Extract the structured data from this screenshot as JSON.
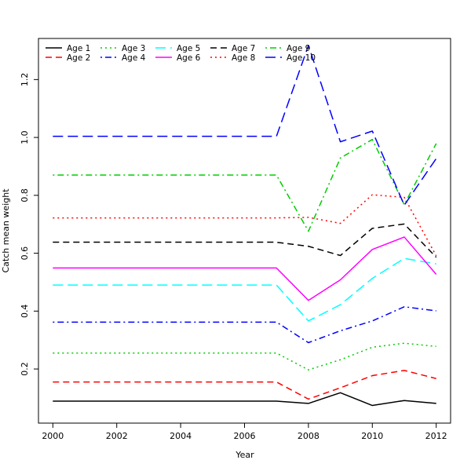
{
  "chart_data": {
    "type": "line",
    "title": "",
    "xlabel": "Year",
    "ylabel": "Catch mean weight",
    "xlim": [
      1999.55,
      2012.45
    ],
    "ylim": [
      0.013,
      1.342
    ],
    "x_ticks": [
      2000,
      2002,
      2004,
      2006,
      2008,
      2010,
      2012
    ],
    "y_ticks": [
      0.2,
      0.4,
      0.6,
      0.8,
      1.0,
      1.2
    ],
    "y_tick_labels": [
      "0.2",
      "0.4",
      "0.6",
      "0.8",
      "1.0",
      "1.2"
    ],
    "grid": false,
    "legend_position": "top-left",
    "x": [
      2000,
      2001,
      2002,
      2003,
      2004,
      2005,
      2006,
      2007,
      2008,
      2009,
      2010,
      2011,
      2012
    ],
    "series": [
      {
        "name": "Age 1",
        "color": "#000000",
        "dash": "solid",
        "values": [
          0.089,
          0.089,
          0.089,
          0.089,
          0.089,
          0.089,
          0.089,
          0.089,
          0.081,
          0.118,
          0.074,
          0.091,
          0.081
        ]
      },
      {
        "name": "Age 2",
        "color": "#ff0000",
        "dash": "dashed",
        "values": [
          0.155,
          0.155,
          0.155,
          0.155,
          0.155,
          0.155,
          0.155,
          0.155,
          0.096,
          0.135,
          0.177,
          0.195,
          0.167
        ]
      },
      {
        "name": "Age 3",
        "color": "#00cd00",
        "dash": "dotted",
        "values": [
          0.255,
          0.255,
          0.255,
          0.255,
          0.255,
          0.255,
          0.255,
          0.255,
          0.197,
          0.232,
          0.275,
          0.289,
          0.278
        ]
      },
      {
        "name": "Age 4",
        "color": "#0000ff",
        "dash": "dotdash",
        "values": [
          0.362,
          0.362,
          0.362,
          0.362,
          0.362,
          0.362,
          0.362,
          0.362,
          0.291,
          0.332,
          0.366,
          0.415,
          0.401
        ]
      },
      {
        "name": "Age 5",
        "color": "#00ffff",
        "dash": "longdash",
        "values": [
          0.49,
          0.49,
          0.49,
          0.49,
          0.49,
          0.49,
          0.49,
          0.49,
          0.366,
          0.422,
          0.513,
          0.582,
          0.563
        ]
      },
      {
        "name": "Age 6",
        "color": "#ff00ff",
        "dash": "solid",
        "values": [
          0.549,
          0.549,
          0.549,
          0.549,
          0.549,
          0.549,
          0.549,
          0.549,
          0.437,
          0.508,
          0.613,
          0.656,
          0.527
        ]
      },
      {
        "name": "Age 7",
        "color": "#000000",
        "dash": "dashed",
        "values": [
          0.638,
          0.638,
          0.638,
          0.638,
          0.638,
          0.638,
          0.638,
          0.638,
          0.624,
          0.592,
          0.686,
          0.701,
          0.586
        ]
      },
      {
        "name": "Age 8",
        "color": "#ff0000",
        "dash": "dotted",
        "values": [
          0.722,
          0.722,
          0.722,
          0.722,
          0.722,
          0.722,
          0.722,
          0.722,
          0.724,
          0.703,
          0.802,
          0.793,
          0.591
        ]
      },
      {
        "name": "Age 9",
        "color": "#00cd00",
        "dash": "dotdash",
        "values": [
          0.87,
          0.87,
          0.87,
          0.87,
          0.87,
          0.87,
          0.87,
          0.87,
          0.676,
          0.929,
          0.993,
          0.768,
          0.979
        ]
      },
      {
        "name": "Age 10",
        "color": "#0000ff",
        "dash": "longdash",
        "values": [
          1.004,
          1.004,
          1.004,
          1.004,
          1.004,
          1.004,
          1.004,
          1.004,
          1.318,
          0.985,
          1.022,
          0.766,
          0.927
        ]
      }
    ]
  }
}
